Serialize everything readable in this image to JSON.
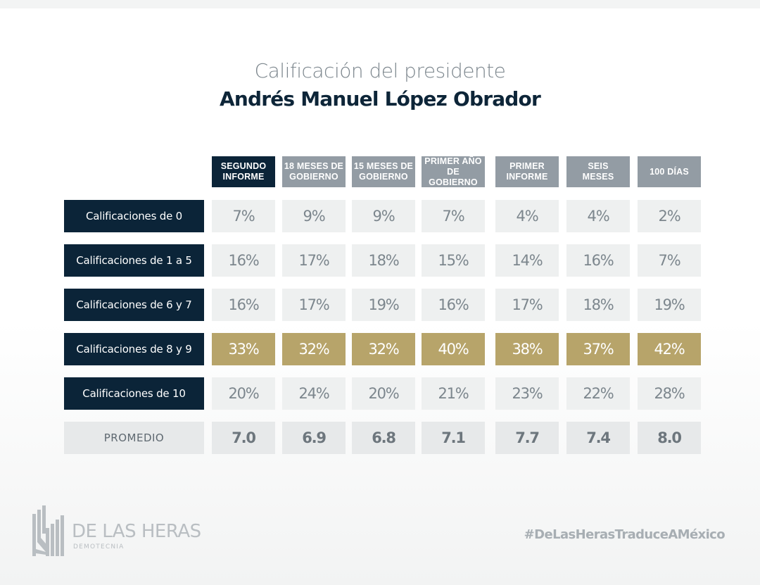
{
  "title": {
    "line1": "Calificación del presidente",
    "line2": "Andrés Manuel López Obrador"
  },
  "colors": {
    "navy": "#0b2438",
    "header_gray": "#939ca4",
    "gold": "#b7a46a",
    "cell_bg": "#eef0f0",
    "text_gray": "#7c868d"
  },
  "table": {
    "columns": [
      {
        "line1": "SEGUNDO",
        "line2": "INFORME",
        "active": true
      },
      {
        "line1": "18 MESES DE",
        "line2": "GOBIERNO",
        "active": false
      },
      {
        "line1": "15 MESES DE",
        "line2": "GOBIERNO",
        "active": false
      },
      {
        "line1": "PRIMER AÑO",
        "line2": "DE GOBIERNO",
        "active": false
      },
      {
        "line1": "PRIMER",
        "line2": "INFORME",
        "active": false
      },
      {
        "line1": "SEIS",
        "line2": "MESES",
        "active": false
      },
      {
        "line1": "100 DÍAS",
        "line2": "",
        "active": false
      }
    ],
    "rows": [
      {
        "label": "Calificaciones de 0",
        "values": [
          "7%",
          "9%",
          "9%",
          "7%",
          "4%",
          "4%",
          "2%"
        ],
        "highlight": false
      },
      {
        "label": "Calificaciones de 1 a 5",
        "values": [
          "16%",
          "17%",
          "18%",
          "15%",
          "14%",
          "16%",
          "7%"
        ],
        "highlight": false
      },
      {
        "label": "Calificaciones de 6 y 7",
        "values": [
          "16%",
          "17%",
          "19%",
          "16%",
          "17%",
          "18%",
          "19%"
        ],
        "highlight": false
      },
      {
        "label": "Calificaciones de 8 y 9",
        "values": [
          "33%",
          "32%",
          "32%",
          "40%",
          "38%",
          "37%",
          "42%"
        ],
        "highlight": true
      },
      {
        "label": "Calificaciones de 10",
        "values": [
          "20%",
          "24%",
          "20%",
          "21%",
          "23%",
          "22%",
          "28%"
        ],
        "highlight": false
      }
    ],
    "average": {
      "label": "PROMEDIO",
      "values": [
        "7.0",
        "6.9",
        "6.8",
        "7.1",
        "7.7",
        "7.4",
        "8.0"
      ]
    }
  },
  "footer": {
    "logo_name": "DE LAS HERAS",
    "logo_sub": "DEMOTECNIA",
    "logo_icon": "building-bars-icon",
    "hashtag": "#DeLasHerasTraduceAMéxico"
  }
}
